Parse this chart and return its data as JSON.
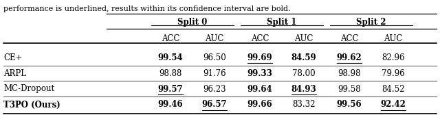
{
  "caption": "performance is underlined, results within its confidence interval are bold.",
  "col_groups": [
    "Split 0",
    "Split 1",
    "Split 2"
  ],
  "col_headers": [
    "ACC",
    "AUC",
    "ACC",
    "AUC",
    "ACC",
    "AUC"
  ],
  "rows": [
    {
      "method": "CE+",
      "values": [
        "99.54",
        "96.50",
        "99.69",
        "84.59",
        "99.62",
        "82.96"
      ],
      "bold": [
        true,
        false,
        true,
        true,
        true,
        false
      ],
      "underline": [
        false,
        false,
        true,
        false,
        true,
        false
      ]
    },
    {
      "method": "ARPL",
      "values": [
        "98.88",
        "91.76",
        "99.33",
        "78.00",
        "98.98",
        "79.96"
      ],
      "bold": [
        false,
        false,
        true,
        false,
        false,
        false
      ],
      "underline": [
        false,
        false,
        false,
        false,
        false,
        false
      ]
    },
    {
      "method": "MC-Dropout",
      "values": [
        "99.57",
        "96.23",
        "99.64",
        "84.93",
        "99.58",
        "84.52"
      ],
      "bold": [
        true,
        false,
        true,
        true,
        false,
        false
      ],
      "underline": [
        true,
        false,
        false,
        true,
        false,
        false
      ]
    },
    {
      "method": "T3PO (Ours)",
      "values": [
        "99.46",
        "96.57",
        "99.66",
        "83.32",
        "99.56",
        "92.42"
      ],
      "bold": [
        true,
        true,
        true,
        false,
        true,
        true
      ],
      "underline": [
        false,
        true,
        false,
        false,
        false,
        true
      ]
    }
  ],
  "last_row_bold_method": true,
  "figsize": [
    6.4,
    1.87
  ],
  "dpi": 100
}
